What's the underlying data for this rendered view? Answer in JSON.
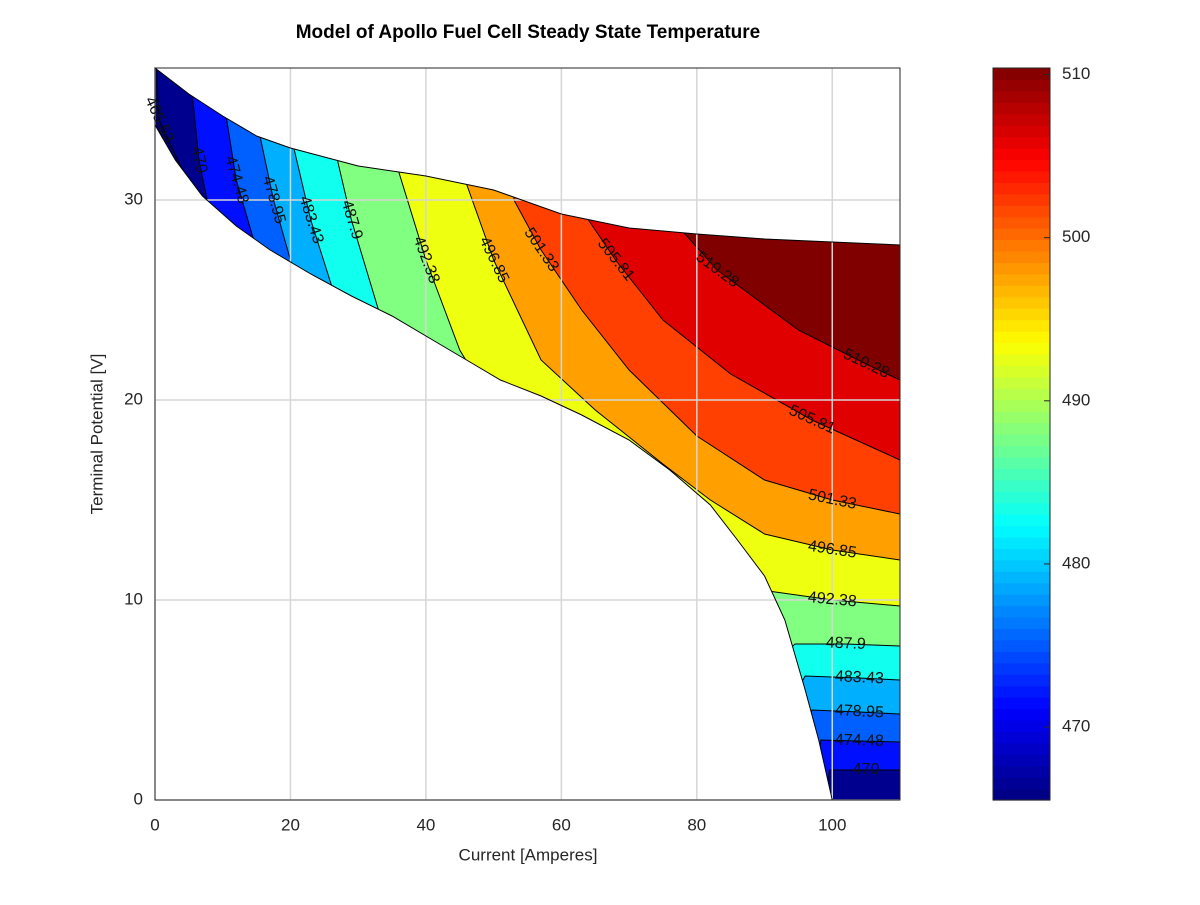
{
  "chart_data": {
    "type": "contourf",
    "title": "Model of Apollo Fuel Cell Steady State Temperature",
    "x_label": "Current [Amperes]",
    "y_label": "Terminal Potential [V]",
    "xlim": [
      0,
      110
    ],
    "ylim": [
      0,
      36.6
    ],
    "xticks": [
      0,
      20,
      40,
      60,
      80,
      100
    ],
    "yticks": [
      0,
      10,
      20,
      30
    ],
    "grid": true,
    "colormap": "jet",
    "clim": [
      465.53,
      510.4
    ],
    "cticks": [
      470,
      480,
      490,
      500,
      510
    ],
    "base_color": "#000070",
    "boundary": {
      "upper": {
        "x": [
          0,
          5,
          10,
          15,
          20,
          30,
          40,
          50,
          55,
          60,
          70,
          80,
          90,
          100,
          110
        ],
        "y": [
          36.6,
          35.3,
          34.2,
          33.2,
          32.6,
          31.7,
          31.2,
          30.5,
          29.9,
          29.3,
          28.6,
          28.3,
          28.05,
          27.9,
          27.75
        ]
      },
      "lower": {
        "x": [
          0,
          3,
          7,
          12,
          17,
          23,
          29,
          35,
          41,
          47,
          51,
          57,
          63,
          70,
          76,
          82,
          86,
          90,
          93,
          96,
          98,
          100
        ],
        "y": [
          33.75,
          32,
          30.2,
          28.7,
          27.5,
          26.3,
          25.2,
          24.2,
          23,
          21.8,
          21,
          20.2,
          19.25,
          18,
          16.5,
          14.75,
          13,
          11.2,
          9,
          5.5,
          3,
          0
        ]
      }
    },
    "contours": [
      {
        "level": 465.53,
        "color": "#00008f",
        "x": [
          0.3,
          0.3,
          0.6,
          20,
          100,
          120
        ],
        "y": [
          38,
          36,
          34,
          20,
          -5,
          -5
        ]
      },
      {
        "level": 470,
        "color": "#0010ff",
        "x": [
          5.5,
          5.5,
          6.5,
          8,
          20,
          90,
          98.5,
          99.6,
          105,
          110
        ],
        "y": [
          37,
          35.3,
          32,
          29.5,
          15,
          -1,
          -1,
          1.5,
          1.5,
          1.5
        ]
      },
      {
        "level": 474.48,
        "color": "#0060ff",
        "x": [
          10.5,
          10.5,
          12,
          15,
          30,
          92,
          97,
          98.3,
          104,
          110
        ],
        "y": [
          37,
          34.2,
          31,
          27.5,
          12,
          -2,
          -2,
          3,
          2.95,
          2.9
        ]
      },
      {
        "level": 478.95,
        "color": "#00b0ff",
        "x": [
          15.5,
          15.5,
          17.5,
          20,
          35,
          90,
          95,
          97,
          104,
          110
        ],
        "y": [
          37,
          33.2,
          30,
          27,
          12,
          2,
          2,
          4.5,
          4.4,
          4.3
        ]
      },
      {
        "level": 483.43,
        "color": "#10ffef",
        "x": [
          20.5,
          20.5,
          23,
          26,
          40,
          90,
          94,
          96,
          104,
          110
        ],
        "y": [
          37,
          32.6,
          29,
          25.8,
          12,
          3,
          5,
          6.2,
          6.1,
          6
        ]
      },
      {
        "level": 487.9,
        "color": "#80ff80",
        "x": [
          27,
          27,
          29,
          33,
          45,
          88,
          92,
          94.5,
          102,
          110
        ],
        "y": [
          37,
          31.9,
          29,
          24.5,
          14,
          5,
          7,
          7.8,
          7.8,
          7.7
        ]
      },
      {
        "level": 492.38,
        "color": "#efff10",
        "x": [
          36,
          36,
          40,
          45,
          60,
          85,
          89.5,
          100,
          110
        ],
        "y": [
          37,
          31.4,
          27,
          22.5,
          14,
          9,
          10.5,
          10,
          9.7
        ]
      },
      {
        "level": 496.85,
        "color": "#ffa000",
        "x": [
          46,
          46,
          50,
          57,
          65,
          75,
          82,
          90,
          100,
          110
        ],
        "y": [
          37,
          30.8,
          27,
          22,
          19.5,
          16.8,
          15,
          13.3,
          12.5,
          12
        ]
      },
      {
        "level": 501.33,
        "color": "#ff4000",
        "x": [
          53,
          53,
          57,
          63,
          70,
          80,
          90,
          100,
          110
        ],
        "y": [
          37,
          30,
          27.5,
          24.5,
          21.5,
          18.2,
          16,
          15,
          14.3
        ]
      },
      {
        "level": 505.81,
        "color": "#e00000",
        "x": [
          64,
          64,
          68,
          75,
          85,
          97,
          110
        ],
        "y": [
          37,
          29,
          27,
          24,
          21.3,
          19,
          17
        ]
      },
      {
        "level": 510.28,
        "color": "#800000",
        "x": [
          78,
          78,
          83,
          95,
          105,
          110
        ],
        "y": [
          37,
          28.4,
          26.5,
          23.5,
          21.8,
          21
        ]
      }
    ]
  }
}
